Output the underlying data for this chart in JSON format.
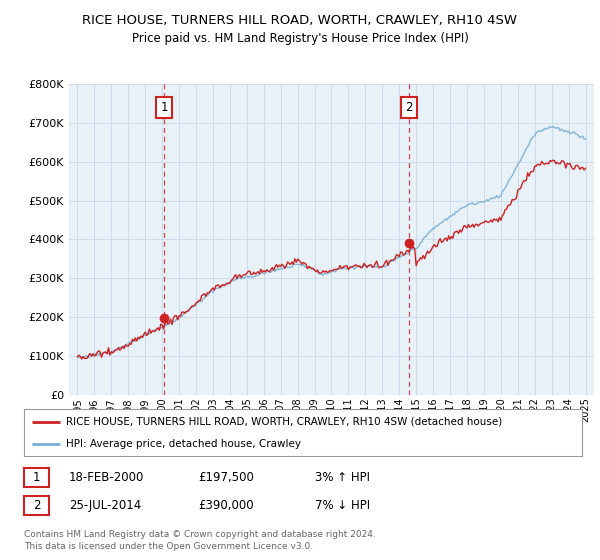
{
  "title": "RICE HOUSE, TURNERS HILL ROAD, WORTH, CRAWLEY, RH10 4SW",
  "subtitle": "Price paid vs. HM Land Registry's House Price Index (HPI)",
  "ylim": [
    0,
    800000
  ],
  "yticks": [
    0,
    100000,
    200000,
    300000,
    400000,
    500000,
    600000,
    700000,
    800000
  ],
  "ytick_labels": [
    "£0",
    "£100K",
    "£200K",
    "£300K",
    "£400K",
    "£500K",
    "£600K",
    "£700K",
    "£800K"
  ],
  "transaction1": {
    "date": 2000.13,
    "price": 197500,
    "label": "1"
  },
  "transaction2": {
    "date": 2014.56,
    "price": 390000,
    "label": "2"
  },
  "legend_line1": "RICE HOUSE, TURNERS HILL ROAD, WORTH, CRAWLEY, RH10 4SW (detached house)",
  "legend_line2": "HPI: Average price, detached house, Crawley",
  "table_row1": [
    "1",
    "18-FEB-2000",
    "£197,500",
    "3% ↑ HPI"
  ],
  "table_row2": [
    "2",
    "25-JUL-2014",
    "£390,000",
    "7% ↓ HPI"
  ],
  "footnote": "Contains HM Land Registry data © Crown copyright and database right 2024.\nThis data is licensed under the Open Government Licence v3.0.",
  "hpi_color": "#7bafd4",
  "price_color": "#cc2222",
  "vline_color": "#cc2222",
  "background_color": "#ffffff",
  "chart_bg_color": "#e8f0f8",
  "grid_color": "#c8d8e8"
}
